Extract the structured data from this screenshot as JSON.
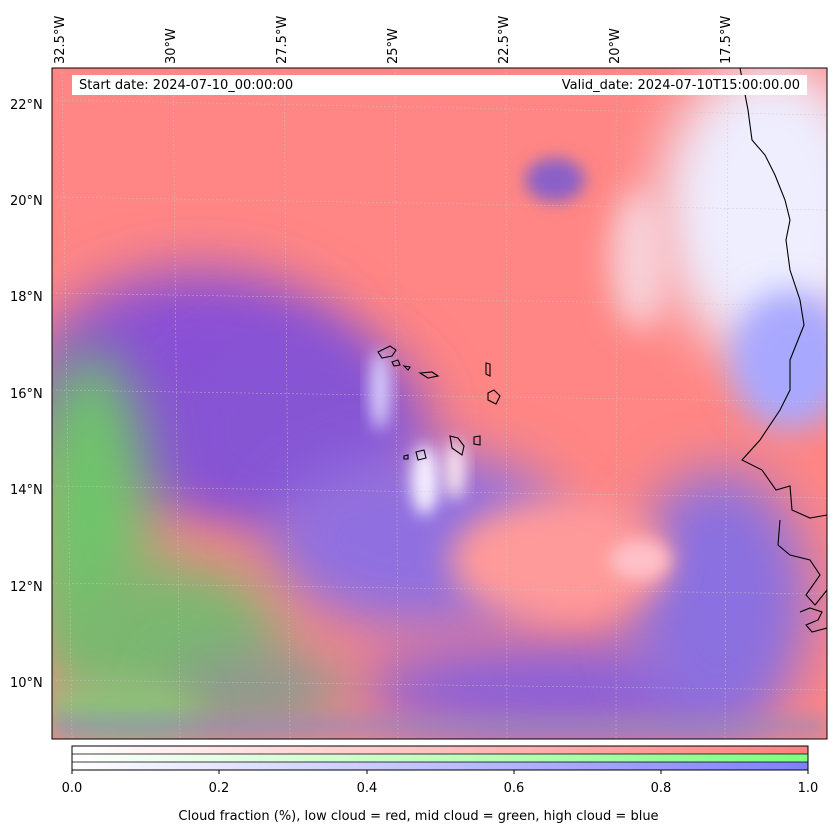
{
  "header": {
    "start_date": "Start date: 2024-07-10_00:00:00",
    "valid_date": "Valid_date: 2024-07-10T15:00:00.00"
  },
  "map": {
    "longitude_labels": [
      "32.5°W",
      "30°W",
      "27.5°W",
      "25°W",
      "22.5°W",
      "20°W",
      "17.5°W"
    ],
    "latitude_labels": [
      "22°N",
      "20°N",
      "18°N",
      "16°N",
      "14°N",
      "12°N",
      "10°N"
    ],
    "extent": {
      "lon_min": -32.5,
      "lon_max": -15.9,
      "lat_min": 8.9,
      "lat_max": 22.7
    }
  },
  "colorbar": {
    "ticks": [
      "0.0",
      "0.2",
      "0.4",
      "0.6",
      "0.8",
      "1.0"
    ],
    "caption": "Cloud fraction (%), low cloud = red, mid cloud = green, high cloud = blue",
    "channels": [
      {
        "name": "low cloud",
        "color": "#ff7f7f"
      },
      {
        "name": "mid cloud",
        "color": "#7fff7f"
      },
      {
        "name": "high cloud",
        "color": "#7f7fff"
      }
    ]
  }
}
